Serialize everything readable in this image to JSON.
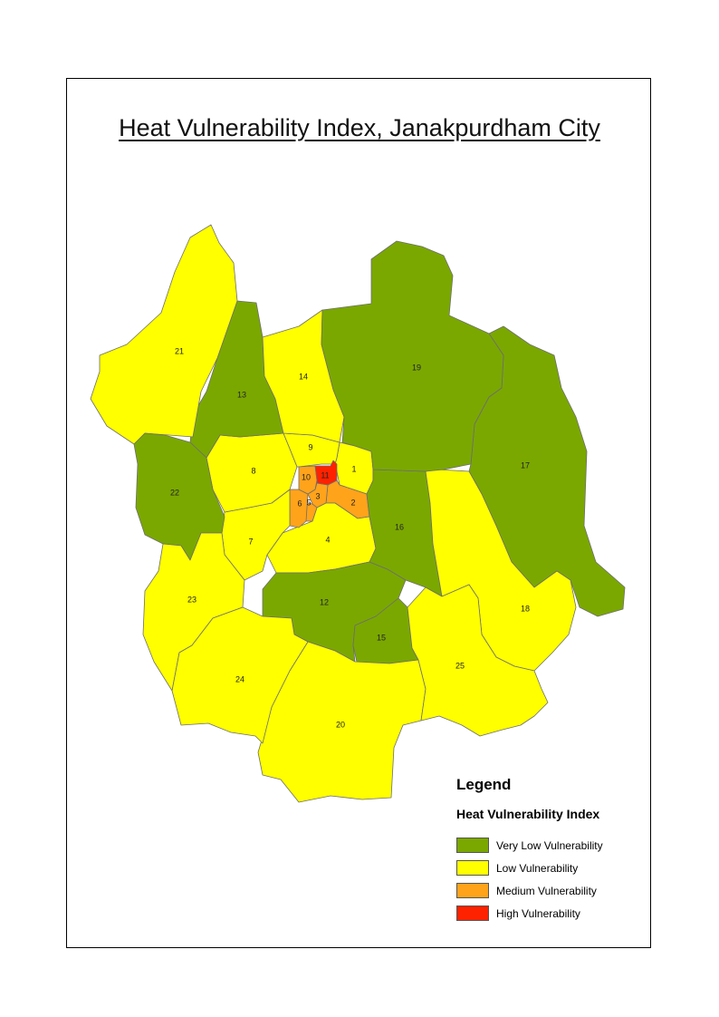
{
  "map": {
    "title": "Heat Vulnerability Index, Janakpurdham City",
    "colors": {
      "very_low": "#7aa800",
      "low": "#ffff00",
      "medium": "#ffa31a",
      "high": "#ff2200"
    },
    "wards": [
      {
        "id": "1",
        "label": "1",
        "class": "low"
      },
      {
        "id": "2",
        "label": "2",
        "class": "medium"
      },
      {
        "id": "3",
        "label": "3",
        "class": "medium"
      },
      {
        "id": "4",
        "label": "4",
        "class": "low"
      },
      {
        "id": "5",
        "label": "5",
        "class": "medium"
      },
      {
        "id": "6",
        "label": "6",
        "class": "medium"
      },
      {
        "id": "7",
        "label": "7",
        "class": "low"
      },
      {
        "id": "8",
        "label": "8",
        "class": "low"
      },
      {
        "id": "9",
        "label": "9",
        "class": "low"
      },
      {
        "id": "10",
        "label": "10",
        "class": "medium"
      },
      {
        "id": "11",
        "label": "11",
        "class": "high"
      },
      {
        "id": "12",
        "label": "12",
        "class": "very_low"
      },
      {
        "id": "13",
        "label": "13",
        "class": "very_low"
      },
      {
        "id": "14",
        "label": "14",
        "class": "low"
      },
      {
        "id": "15",
        "label": "15",
        "class": "very_low"
      },
      {
        "id": "16",
        "label": "16",
        "class": "very_low"
      },
      {
        "id": "17",
        "label": "17",
        "class": "very_low"
      },
      {
        "id": "18",
        "label": "18",
        "class": "low"
      },
      {
        "id": "19",
        "label": "19",
        "class": "very_low"
      },
      {
        "id": "20",
        "label": "20",
        "class": "low"
      },
      {
        "id": "21",
        "label": "21",
        "class": "low"
      },
      {
        "id": "22",
        "label": "22",
        "class": "very_low"
      },
      {
        "id": "23",
        "label": "23",
        "class": "low"
      },
      {
        "id": "24",
        "label": "24",
        "class": "low"
      },
      {
        "id": "25",
        "label": "25",
        "class": "low"
      }
    ]
  },
  "legend": {
    "title": "Legend",
    "subtitle": "Heat Vulnerability Index",
    "items": [
      {
        "class": "very_low",
        "label": "Very Low Vulnerability"
      },
      {
        "class": "low",
        "label": "Low Vulnerability"
      },
      {
        "class": "medium",
        "label": "Medium Vulnerability"
      },
      {
        "class": "high",
        "label": "High Vulnerability"
      }
    ]
  }
}
